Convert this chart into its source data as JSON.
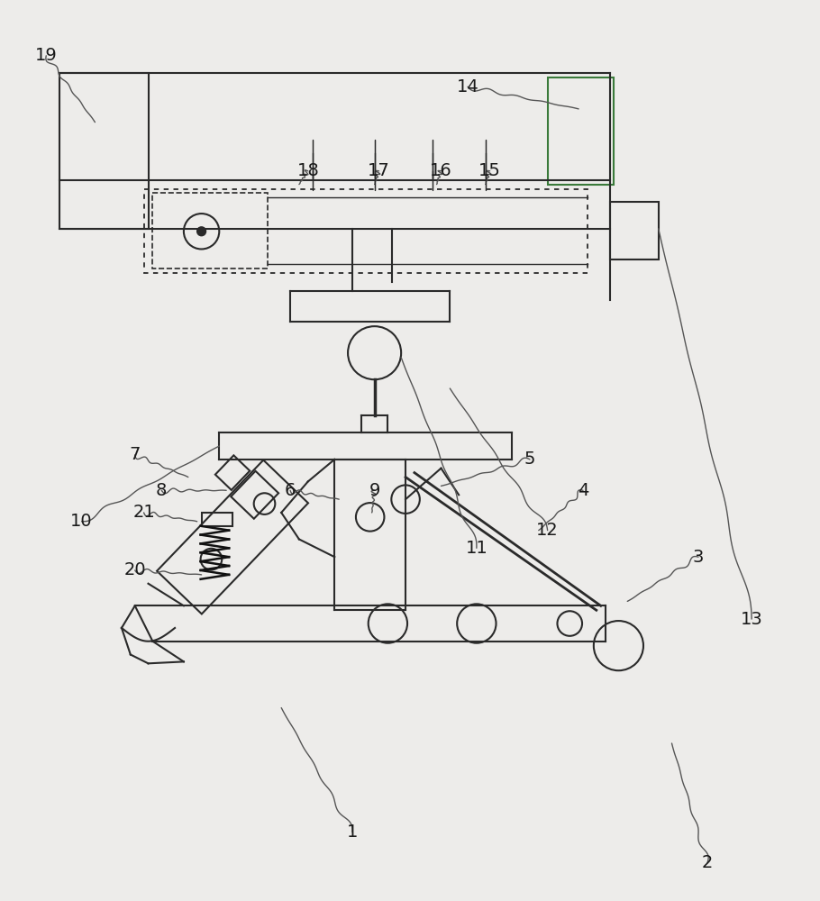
{
  "bg_color": "#edecea",
  "line_color": "#2a2a2a",
  "label_color": "#1a1a1a",
  "green_color": "#3a7a3a",
  "fig_width": 9.1,
  "fig_height": 10.0,
  "dpi": 100
}
